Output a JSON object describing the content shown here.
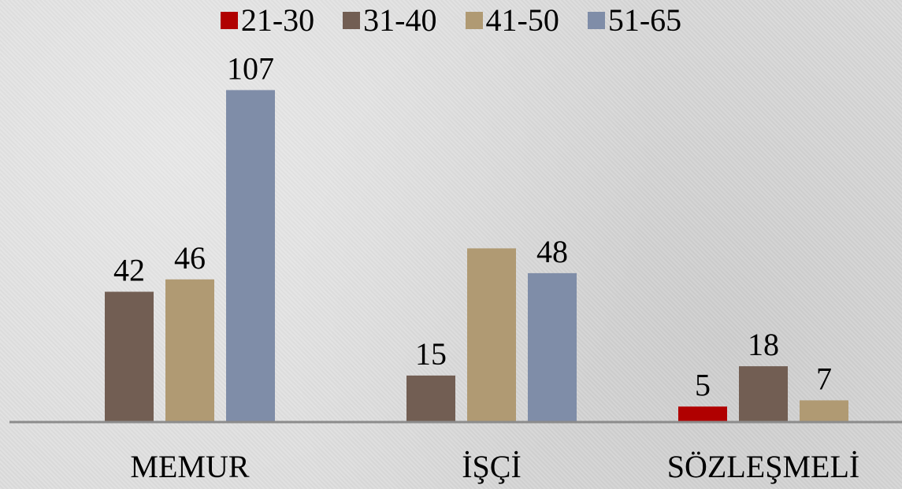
{
  "chart_data": {
    "type": "bar",
    "title": "",
    "xlabel": "",
    "ylabel": "",
    "categories": [
      "MEMUR",
      "İŞÇİ",
      "SÖZLEŞMELİ"
    ],
    "series": [
      {
        "name": "21-30",
        "color": "#b00000",
        "values": [
          null,
          null,
          5
        ]
      },
      {
        "name": "31-40",
        "color": "#725e53",
        "values": [
          42,
          15,
          18
        ]
      },
      {
        "name": "41-50",
        "color": "#b09a73",
        "values": [
          46,
          56,
          7
        ]
      },
      {
        "name": "51-65",
        "color": "#7f8da8",
        "values": [
          107,
          48,
          null
        ]
      }
    ],
    "data_labels": [
      [
        "",
        "",
        "5"
      ],
      [
        "42",
        "15",
        "18"
      ],
      [
        "46",
        "",
        "7"
      ],
      [
        "107",
        "48",
        ""
      ]
    ],
    "ylim": [
      0,
      110
    ],
    "grid": false,
    "legend_position": "top-center"
  }
}
